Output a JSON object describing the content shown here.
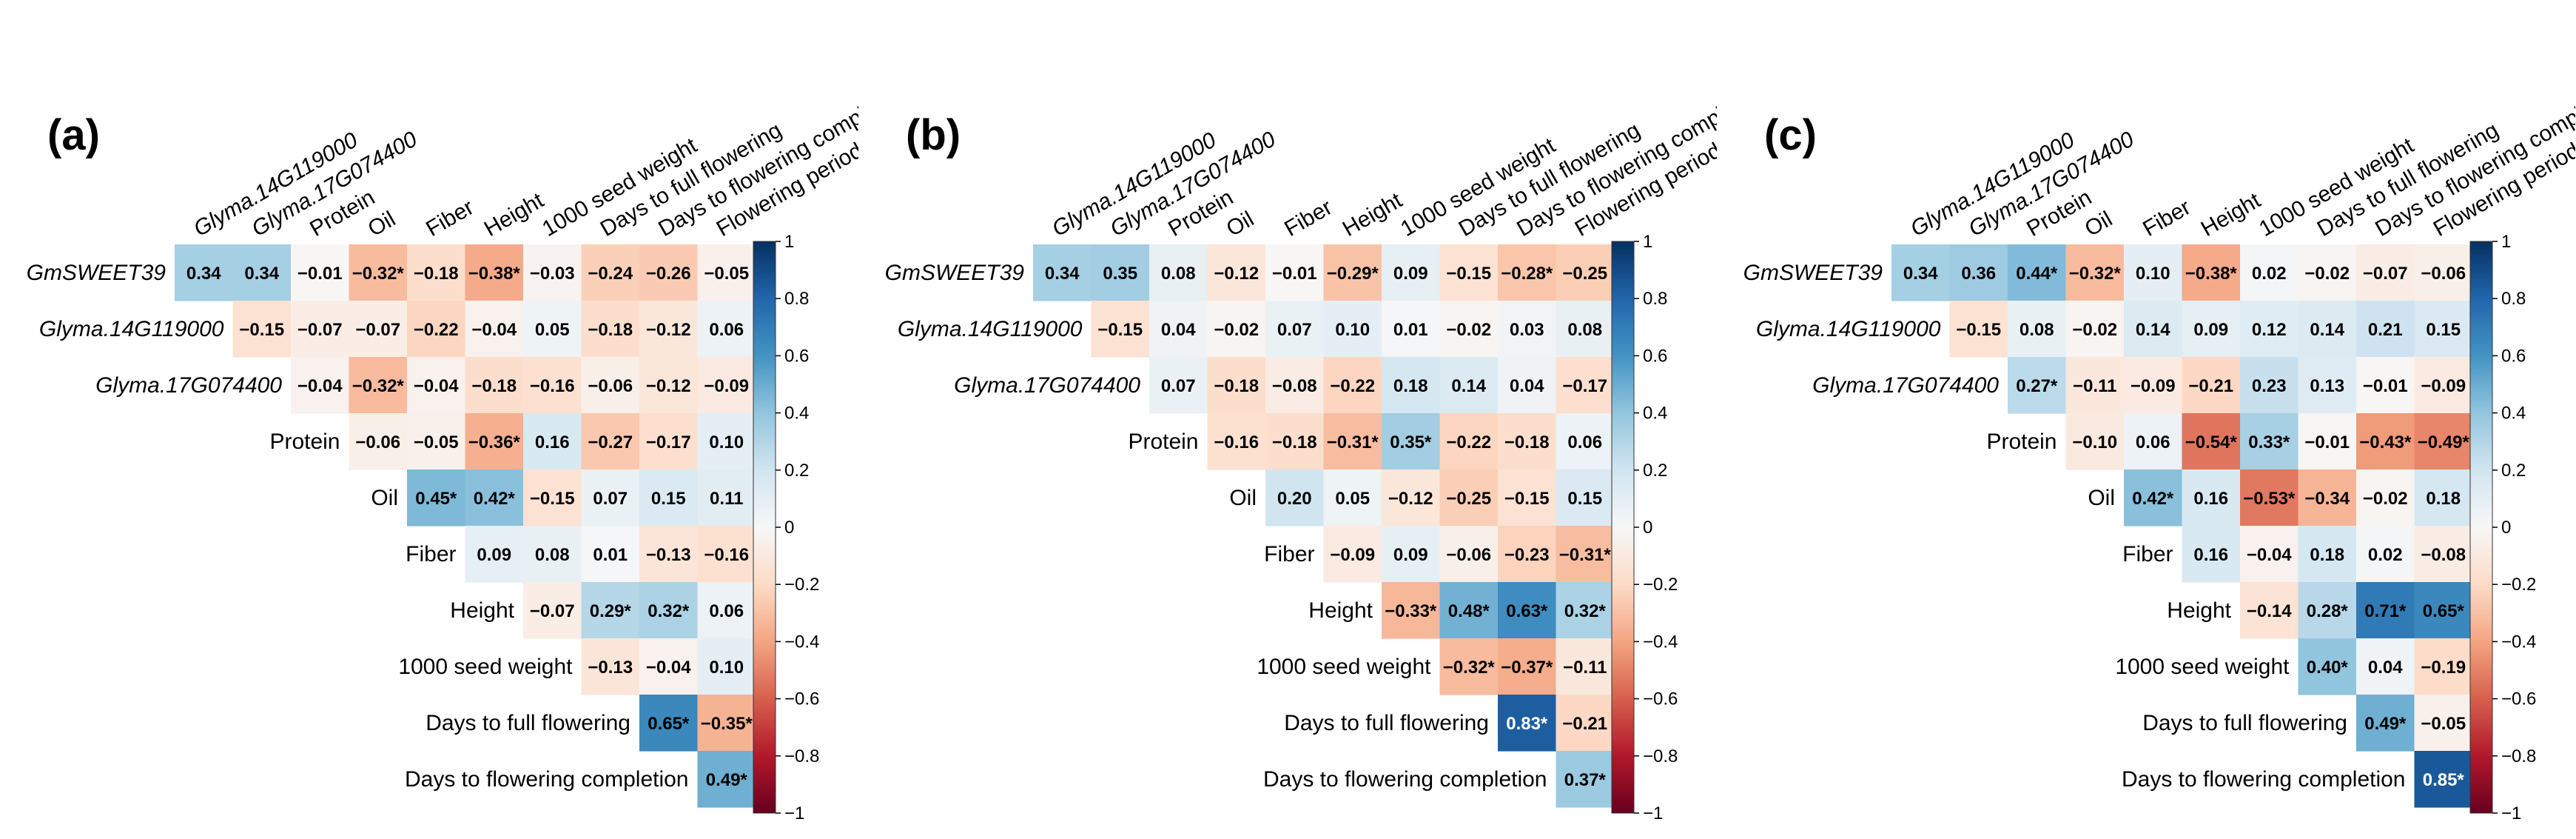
{
  "chart_data": [
    {
      "type": "heatmap",
      "panel_label": "(a)",
      "columns": [
        "Glyma.14G119000",
        "Glyma.17G074400",
        "Protein",
        "Oil",
        "Fiber",
        "Height",
        "1000 seed weight",
        "Days to full flowering",
        "Days to flowering completion",
        "Flowering period"
      ],
      "rows": [
        "GmSWEET39",
        "Glyma.14G119000",
        "Glyma.17G074400",
        "Protein",
        "Oil",
        "Fiber",
        "Height",
        "1000 seed weight",
        "Days to full flowering",
        "Days to flowering completion"
      ],
      "italic_labels": [
        "GmSWEET39",
        "Glyma.14G119000",
        "Glyma.17G074400"
      ],
      "values": [
        [
          0.34,
          0.34,
          -0.01,
          -0.32,
          -0.18,
          -0.38,
          -0.03,
          -0.24,
          -0.26,
          -0.05
        ],
        [
          null,
          -0.15,
          -0.07,
          -0.07,
          -0.22,
          -0.04,
          0.05,
          -0.18,
          -0.12,
          0.06
        ],
        [
          null,
          null,
          -0.04,
          -0.32,
          -0.04,
          -0.18,
          -0.16,
          -0.06,
          -0.12,
          -0.09
        ],
        [
          null,
          null,
          null,
          -0.06,
          -0.05,
          -0.36,
          0.16,
          -0.27,
          -0.17,
          0.1
        ],
        [
          null,
          null,
          null,
          null,
          0.45,
          0.42,
          -0.15,
          0.07,
          0.15,
          0.11
        ],
        [
          null,
          null,
          null,
          null,
          null,
          0.09,
          0.08,
          0.01,
          -0.13,
          -0.16
        ],
        [
          null,
          null,
          null,
          null,
          null,
          null,
          -0.07,
          0.29,
          0.32,
          0.06
        ],
        [
          null,
          null,
          null,
          null,
          null,
          null,
          null,
          -0.13,
          -0.04,
          0.1
        ],
        [
          null,
          null,
          null,
          null,
          null,
          null,
          null,
          null,
          0.65,
          -0.35
        ],
        [
          null,
          null,
          null,
          null,
          null,
          null,
          null,
          null,
          null,
          0.49
        ]
      ],
      "labels": [
        [
          "0.34",
          "0.34",
          "−0.01",
          "−0.32*",
          "−0.18",
          "−0.38*",
          "−0.03",
          "−0.24",
          "−0.26",
          "−0.05"
        ],
        [
          "",
          "−0.15",
          "−0.07",
          "−0.07",
          "−0.22",
          "−0.04",
          "0.05",
          "−0.18",
          "−0.12",
          "0.06"
        ],
        [
          "",
          "",
          "−0.04",
          "−0.32*",
          "−0.04",
          "−0.18",
          "−0.16",
          "−0.06",
          "−0.12",
          "−0.09"
        ],
        [
          "",
          "",
          "",
          "−0.06",
          "−0.05",
          "−0.36*",
          "0.16",
          "−0.27",
          "−0.17",
          "0.10"
        ],
        [
          "",
          "",
          "",
          "",
          "0.45*",
          "0.42*",
          "−0.15",
          "0.07",
          "0.15",
          "0.11"
        ],
        [
          "",
          "",
          "",
          "",
          "",
          "0.09",
          "0.08",
          "0.01",
          "−0.13",
          "−0.16"
        ],
        [
          "",
          "",
          "",
          "",
          "",
          "",
          "−0.07",
          "0.29*",
          "0.32*",
          "0.06"
        ],
        [
          "",
          "",
          "",
          "",
          "",
          "",
          "",
          "−0.13",
          "−0.04",
          "0.10"
        ],
        [
          "",
          "",
          "",
          "",
          "",
          "",
          "",
          "",
          "0.65*",
          "−0.35*"
        ],
        [
          "",
          "",
          "",
          "",
          "",
          "",
          "",
          "",
          "",
          "0.49*"
        ]
      ],
      "colorbar": {
        "min": -1,
        "max": 1,
        "ticks": [
          "1",
          "0.8",
          "0.6",
          "0.4",
          "0.2",
          "0",
          "−0.2",
          "−0.4",
          "−0.6",
          "−0.8",
          "−1"
        ]
      }
    },
    {
      "type": "heatmap",
      "panel_label": "(b)",
      "columns": [
        "Glyma.14G119000",
        "Glyma.17G074400",
        "Protein",
        "Oil",
        "Fiber",
        "Height",
        "1000 seed weight",
        "Days to full flowering",
        "Days to flowering completion",
        "Flowering period"
      ],
      "rows": [
        "GmSWEET39",
        "Glyma.14G119000",
        "Glyma.17G074400",
        "Protein",
        "Oil",
        "Fiber",
        "Height",
        "1000 seed weight",
        "Days to full flowering",
        "Days to flowering completion"
      ],
      "italic_labels": [
        "GmSWEET39",
        "Glyma.14G119000",
        "Glyma.17G074400"
      ],
      "values": [
        [
          0.34,
          0.35,
          0.08,
          -0.12,
          -0.01,
          -0.29,
          0.09,
          -0.15,
          -0.28,
          -0.25
        ],
        [
          null,
          -0.15,
          0.04,
          -0.02,
          0.07,
          0.1,
          0.01,
          -0.02,
          0.03,
          0.08
        ],
        [
          null,
          null,
          0.07,
          -0.18,
          -0.08,
          -0.22,
          0.18,
          0.14,
          0.04,
          -0.17
        ],
        [
          null,
          null,
          null,
          -0.16,
          -0.18,
          -0.31,
          0.35,
          -0.22,
          -0.18,
          0.06
        ],
        [
          null,
          null,
          null,
          null,
          0.2,
          0.05,
          -0.12,
          -0.25,
          -0.15,
          0.15
        ],
        [
          null,
          null,
          null,
          null,
          null,
          -0.09,
          0.09,
          -0.06,
          -0.23,
          -0.31
        ],
        [
          null,
          null,
          null,
          null,
          null,
          null,
          -0.33,
          0.48,
          0.63,
          0.32
        ],
        [
          null,
          null,
          null,
          null,
          null,
          null,
          null,
          -0.32,
          -0.37,
          -0.11
        ],
        [
          null,
          null,
          null,
          null,
          null,
          null,
          null,
          null,
          0.83,
          -0.21
        ],
        [
          null,
          null,
          null,
          null,
          null,
          null,
          null,
          null,
          null,
          0.37
        ]
      ],
      "labels": [
        [
          "0.34",
          "0.35",
          "0.08",
          "−0.12",
          "−0.01",
          "−0.29*",
          "0.09",
          "−0.15",
          "−0.28*",
          "−0.25"
        ],
        [
          "",
          "−0.15",
          "0.04",
          "−0.02",
          "0.07",
          "0.10",
          "0.01",
          "−0.02",
          "0.03",
          "0.08"
        ],
        [
          "",
          "",
          "0.07",
          "−0.18",
          "−0.08",
          "−0.22",
          "0.18",
          "0.14",
          "0.04",
          "−0.17"
        ],
        [
          "",
          "",
          "",
          "−0.16",
          "−0.18",
          "−0.31*",
          "0.35*",
          "−0.22",
          "−0.18",
          "0.06"
        ],
        [
          "",
          "",
          "",
          "",
          "0.20",
          "0.05",
          "−0.12",
          "−0.25",
          "−0.15",
          "0.15"
        ],
        [
          "",
          "",
          "",
          "",
          "",
          "−0.09",
          "0.09",
          "−0.06",
          "−0.23",
          "−0.31*"
        ],
        [
          "",
          "",
          "",
          "",
          "",
          "",
          "−0.33*",
          "0.48*",
          "0.63*",
          "0.32*"
        ],
        [
          "",
          "",
          "",
          "",
          "",
          "",
          "",
          "−0.32*",
          "−0.37*",
          "−0.11"
        ],
        [
          "",
          "",
          "",
          "",
          "",
          "",
          "",
          "",
          "0.83*",
          "−0.21"
        ],
        [
          "",
          "",
          "",
          "",
          "",
          "",
          "",
          "",
          "",
          "0.37*"
        ]
      ],
      "colorbar": {
        "min": -1,
        "max": 1,
        "ticks": [
          "1",
          "0.8",
          "0.6",
          "0.4",
          "0.2",
          "0",
          "−0.2",
          "−0.4",
          "−0.6",
          "−0.8",
          "−1"
        ]
      }
    },
    {
      "type": "heatmap",
      "panel_label": "(c)",
      "columns": [
        "Glyma.14G119000",
        "Glyma.17G074400",
        "Protein",
        "Oil",
        "Fiber",
        "Height",
        "1000 seed weight",
        "Days to full flowering",
        "Days to flowering completion",
        "Flowering period"
      ],
      "rows": [
        "GmSWEET39",
        "Glyma.14G119000",
        "Glyma.17G074400",
        "Protein",
        "Oil",
        "Fiber",
        "Height",
        "1000 seed weight",
        "Days to full flowering",
        "Days to flowering completion"
      ],
      "italic_labels": [
        "GmSWEET39",
        "Glyma.14G119000",
        "Glyma.17G074400"
      ],
      "values": [
        [
          0.34,
          0.36,
          0.44,
          -0.32,
          0.1,
          -0.38,
          0.02,
          -0.02,
          -0.07,
          -0.06
        ],
        [
          null,
          -0.15,
          0.08,
          -0.02,
          0.14,
          0.09,
          0.12,
          0.14,
          0.21,
          0.15
        ],
        [
          null,
          null,
          0.27,
          -0.11,
          -0.09,
          -0.21,
          0.23,
          0.13,
          -0.01,
          -0.09
        ],
        [
          null,
          null,
          null,
          -0.1,
          0.06,
          -0.54,
          0.33,
          -0.01,
          -0.43,
          -0.49
        ],
        [
          null,
          null,
          null,
          null,
          0.42,
          0.16,
          -0.53,
          -0.34,
          -0.02,
          0.18
        ],
        [
          null,
          null,
          null,
          null,
          null,
          0.16,
          -0.04,
          0.18,
          0.02,
          -0.08
        ],
        [
          null,
          null,
          null,
          null,
          null,
          null,
          -0.14,
          0.28,
          0.71,
          0.65
        ],
        [
          null,
          null,
          null,
          null,
          null,
          null,
          null,
          0.4,
          0.04,
          -0.19
        ],
        [
          null,
          null,
          null,
          null,
          null,
          null,
          null,
          null,
          0.49,
          -0.05
        ],
        [
          null,
          null,
          null,
          null,
          null,
          null,
          null,
          null,
          null,
          0.85
        ]
      ],
      "labels": [
        [
          "0.34",
          "0.36",
          "0.44*",
          "−0.32*",
          "0.10",
          "−0.38*",
          "0.02",
          "−0.02",
          "−0.07",
          "−0.06"
        ],
        [
          "",
          "−0.15",
          "0.08",
          "−0.02",
          "0.14",
          "0.09",
          "0.12",
          "0.14",
          "0.21",
          "0.15"
        ],
        [
          "",
          "",
          "0.27*",
          "−0.11",
          "−0.09",
          "−0.21",
          "0.23",
          "0.13",
          "−0.01",
          "−0.09"
        ],
        [
          "",
          "",
          "",
          "−0.10",
          "0.06",
          "−0.54*",
          "0.33*",
          "−0.01",
          "−0.43*",
          "−0.49*"
        ],
        [
          "",
          "",
          "",
          "",
          "0.42*",
          "0.16",
          "−0.53*",
          "−0.34",
          "−0.02",
          "0.18"
        ],
        [
          "",
          "",
          "",
          "",
          "",
          "0.16",
          "−0.04",
          "0.18",
          "0.02",
          "−0.08"
        ],
        [
          "",
          "",
          "",
          "",
          "",
          "",
          "−0.14",
          "0.28*",
          "0.71*",
          "0.65*"
        ],
        [
          "",
          "",
          "",
          "",
          "",
          "",
          "",
          "0.40*",
          "0.04",
          "−0.19"
        ],
        [
          "",
          "",
          "",
          "",
          "",
          "",
          "",
          "",
          "0.49*",
          "−0.05"
        ],
        [
          "",
          "",
          "",
          "",
          "",
          "",
          "",
          "",
          "",
          "0.85*"
        ]
      ],
      "colorbar": {
        "min": -1,
        "max": 1,
        "ticks": [
          "1",
          "0.8",
          "0.6",
          "0.4",
          "0.2",
          "0",
          "−0.2",
          "−0.4",
          "−0.6",
          "−0.8",
          "−1"
        ]
      }
    }
  ]
}
